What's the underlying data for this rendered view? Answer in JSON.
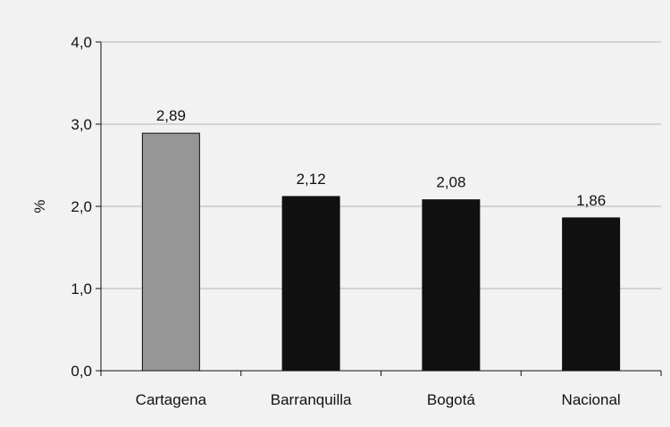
{
  "chart_data": {
    "type": "bar",
    "title": "",
    "xlabel": "",
    "ylabel": "%",
    "ylim": [
      0,
      4
    ],
    "yticks": [
      0,
      1,
      2,
      3,
      4
    ],
    "ytick_labels": [
      "0,0",
      "1,0",
      "2,0",
      "3,0",
      "4,0"
    ],
    "grid": true,
    "categories": [
      "Cartagena",
      "Barranquilla",
      "Bogotá",
      "Nacional"
    ],
    "values": [
      2.89,
      2.12,
      2.08,
      1.86
    ],
    "value_labels": [
      "2,89",
      "2,12",
      "2,08",
      "1,86"
    ],
    "bar_colors": [
      "#969696",
      "#111111",
      "#111111",
      "#111111"
    ]
  }
}
